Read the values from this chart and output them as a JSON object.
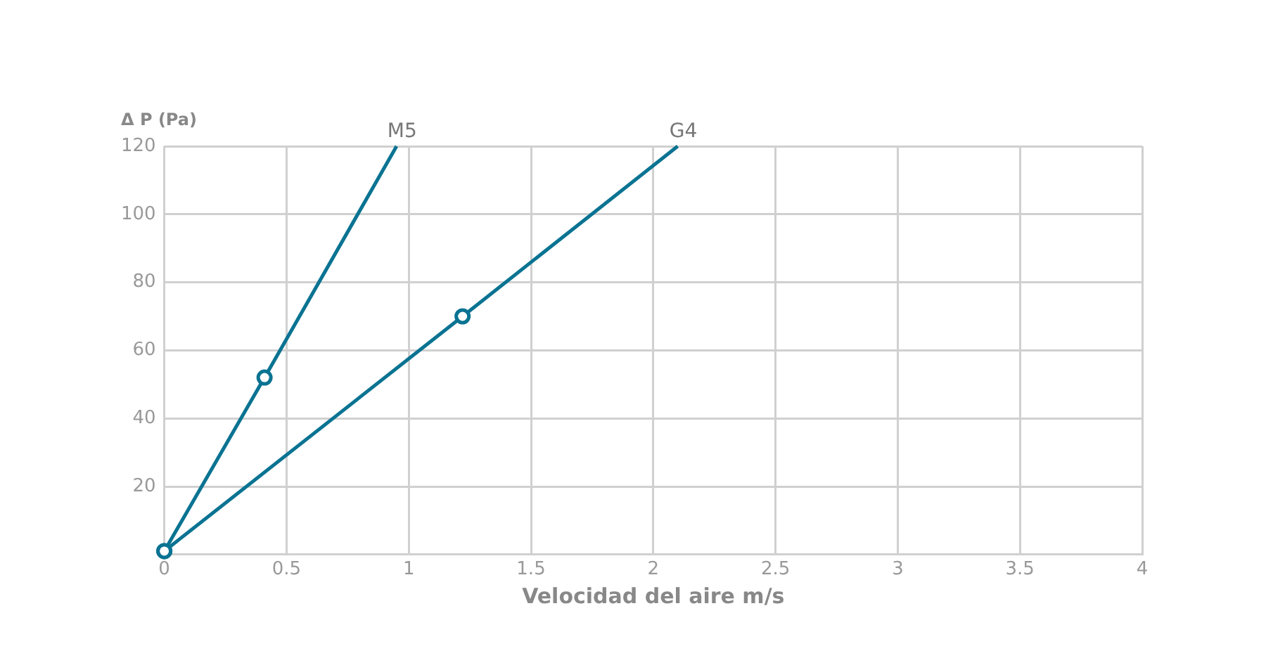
{
  "chart_data": {
    "type": "line",
    "xlabel": "Velocidad del aire m/s",
    "ylabel": "Δ P (Pa)",
    "series": [
      {
        "name": "M5",
        "color": "#0a7392",
        "x": [
          0,
          0.41,
          0.95
        ],
        "values": [
          1,
          52,
          120
        ]
      },
      {
        "name": "G4",
        "color": "#0a7392",
        "x": [
          0,
          1.22,
          2.1
        ],
        "values": [
          1,
          70,
          120
        ]
      }
    ],
    "xlim": [
      0,
      4
    ],
    "xticks": [
      0,
      0.5,
      1,
      1.5,
      2,
      2.5,
      3,
      3.5,
      4
    ],
    "ylim": [
      0,
      120
    ],
    "yticks": [
      {
        "value": 0,
        "label": null
      },
      20,
      40,
      60,
      80,
      100,
      120
    ],
    "grid": true,
    "legend": false,
    "marker": "circle",
    "line_style": "solid"
  }
}
